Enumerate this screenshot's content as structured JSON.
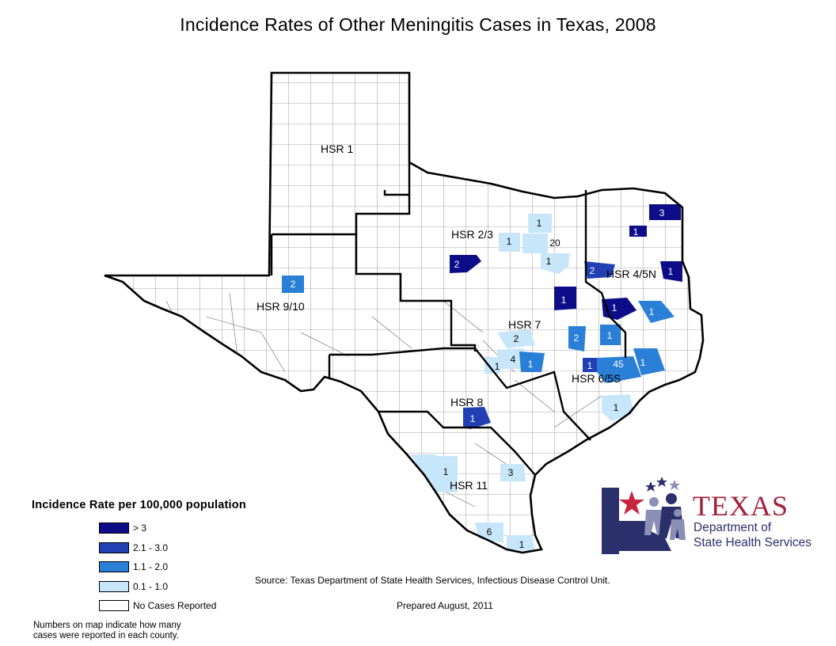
{
  "title": "Incidence Rates of Other Meningitis Cases in Texas, 2008",
  "colors": {
    "gt3": "#0d0d8a",
    "r21_30": "#2240b4",
    "r11_20": "#2a7fd6",
    "r01_10": "#c8e6fa",
    "none": "#ffffff",
    "county_border": "#555555",
    "region_border": "#000000"
  },
  "regions": [
    {
      "name": "HSR 1"
    },
    {
      "name": "HSR 2/3"
    },
    {
      "name": "HSR 4/5N"
    },
    {
      "name": "HSR 9/10"
    },
    {
      "name": "HSR 7"
    },
    {
      "name": "HSR 6/5S"
    },
    {
      "name": "HSR 8"
    },
    {
      "name": "HSR 11"
    }
  ],
  "counties_with_cases": [
    {
      "count": "3",
      "rate_class": "gt3"
    },
    {
      "count": "1",
      "rate_class": "gt3"
    },
    {
      "count": "1",
      "rate_class": "r01_10"
    },
    {
      "count": "1",
      "rate_class": "r01_10"
    },
    {
      "count": "20",
      "rate_class": "r01_10"
    },
    {
      "count": "2",
      "rate_class": "gt3"
    },
    {
      "count": "1",
      "rate_class": "r01_10"
    },
    {
      "count": "2",
      "rate_class": "r21_30"
    },
    {
      "count": "1",
      "rate_class": "gt3"
    },
    {
      "count": "2",
      "rate_class": "r11_20"
    },
    {
      "count": "1",
      "rate_class": "gt3"
    },
    {
      "count": "1",
      "rate_class": "gt3"
    },
    {
      "count": "1",
      "rate_class": "r11_20"
    },
    {
      "count": "2",
      "rate_class": "r01_10"
    },
    {
      "count": "2",
      "rate_class": "r11_20"
    },
    {
      "count": "1",
      "rate_class": "r11_20"
    },
    {
      "count": "4",
      "rate_class": "r01_10"
    },
    {
      "count": "1",
      "rate_class": "r01_10"
    },
    {
      "count": "1",
      "rate_class": "r11_20"
    },
    {
      "count": "1",
      "rate_class": "r21_30"
    },
    {
      "count": "45",
      "rate_class": "r11_20"
    },
    {
      "count": "1",
      "rate_class": "r11_20"
    },
    {
      "count": "1",
      "rate_class": "r01_10"
    },
    {
      "count": "1",
      "rate_class": "r21_30"
    },
    {
      "count": "1",
      "rate_class": "r01_10"
    },
    {
      "count": "3",
      "rate_class": "r01_10"
    },
    {
      "count": "6",
      "rate_class": "r01_10"
    },
    {
      "count": "1",
      "rate_class": "r01_10"
    }
  ],
  "legend": {
    "title": "Incidence Rate per 100,000 population",
    "items": [
      {
        "label": "> 3",
        "color": "#0d0d8a"
      },
      {
        "label": "2.1 - 3.0",
        "color": "#2240b4"
      },
      {
        "label": "1.1 - 2.0",
        "color": "#2a7fd6"
      },
      {
        "label": "0.1 - 1.0",
        "color": "#c8e6fa"
      },
      {
        "label": "No Cases Reported",
        "color": "#ffffff"
      }
    ],
    "note_line1": "Numbers on map indicate how many",
    "note_line2": "cases were reported in each county."
  },
  "source": "Source: Texas Department of State Health Services, Infectious Disease Control Unit.",
  "prepared": "Prepared August, 2011",
  "logo": {
    "texas": "TEXAS",
    "line1": "Department of",
    "line2": "State Health Services"
  }
}
